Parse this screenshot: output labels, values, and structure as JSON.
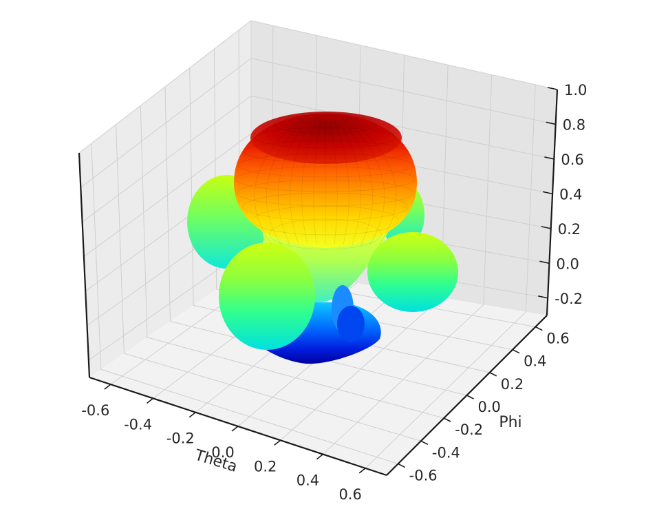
{
  "chart_data": {
    "type": "surface3d",
    "title": "",
    "xlabel": "Theta",
    "ylabel": "Phi",
    "zlabel": "",
    "xlim": [
      -0.7,
      0.7
    ],
    "ylim": [
      -0.7,
      0.7
    ],
    "zlim": [
      -0.3,
      1.0
    ],
    "grid": true,
    "colormap": "jet",
    "x_ticks": [
      "-0.6",
      "-0.4",
      "-0.2",
      "0.0",
      "0.2",
      "0.4",
      "0.6"
    ],
    "y_ticks": [
      "-0.6",
      "-0.4",
      "-0.2",
      "0.0",
      "0.2",
      "0.4",
      "0.6"
    ],
    "z_ticks": [
      "-0.2",
      "0.0",
      "0.2",
      "0.4",
      "0.6",
      "0.8",
      "1.0"
    ],
    "surface": {
      "description_kind": "radiation-pattern",
      "main_lobe_peak_z": 0.92,
      "main_lobe_radius": 0.36,
      "side_lobe_count": 4,
      "side_lobe_peak_radius": 0.56,
      "min_z": -0.28
    },
    "colors": {
      "pane_left": "#ececec",
      "pane_right": "#e4e4e4",
      "pane_floor": "#f2f2f2",
      "grid": "#cfcfcf",
      "axis": "#1a1a1a"
    }
  }
}
